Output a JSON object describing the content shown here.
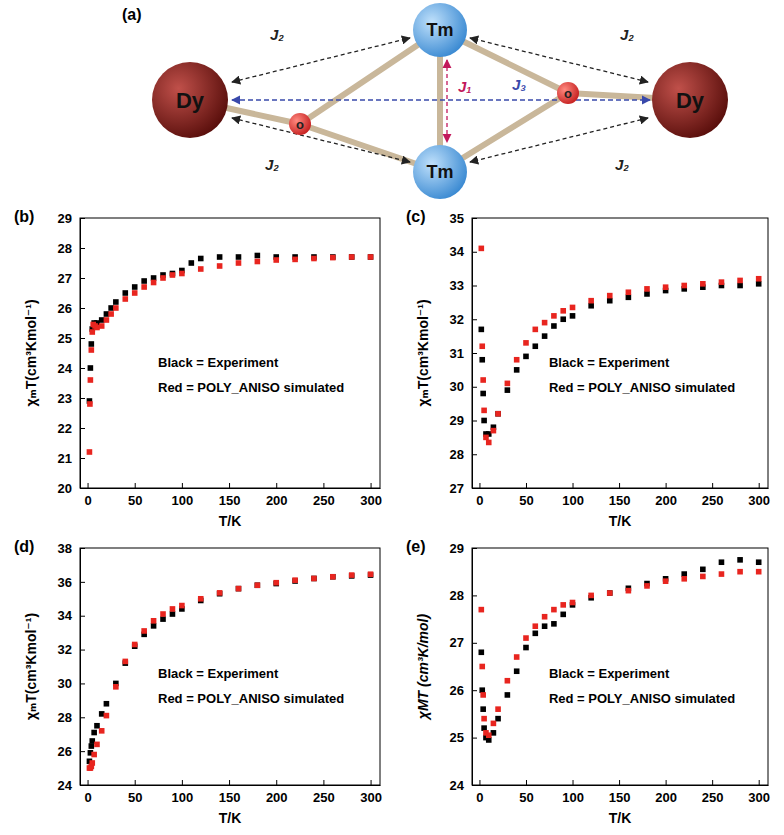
{
  "diagram": {
    "label": "(a)",
    "nodes": [
      {
        "label": "Dy"
      },
      {
        "label": "Dy"
      },
      {
        "label": "Tm"
      },
      {
        "label": "Tm"
      },
      {
        "label": "o"
      },
      {
        "label": "o"
      }
    ],
    "couplings": [
      {
        "label": "J₁"
      },
      {
        "label": "J₂"
      },
      {
        "label": "J₂"
      },
      {
        "label": "J₂"
      },
      {
        "label": "J₂"
      },
      {
        "label": "J₃"
      }
    ]
  },
  "chart_data": [
    {
      "type": "scatter",
      "title": "(b)",
      "xlabel": "T/K",
      "ylabel": "χₘT(cm³Kmol⁻¹)",
      "marker": "square",
      "xlim": [
        -8,
        310
      ],
      "ylim": [
        20,
        29
      ],
      "xticks": [
        0,
        50,
        100,
        150,
        200,
        250,
        300
      ],
      "yticks": [
        20,
        21,
        22,
        23,
        24,
        25,
        26,
        27,
        28,
        29
      ],
      "series": [
        {
          "name": "Black = Experiment",
          "color": "#000000",
          "x": [
            2,
            3,
            4,
            5,
            7,
            10,
            15,
            20,
            25,
            30,
            40,
            50,
            60,
            70,
            80,
            90,
            100,
            110,
            120,
            140,
            160,
            180,
            200,
            220,
            240,
            260,
            280,
            300
          ],
          "values": [
            22.9,
            24.0,
            24.8,
            25.3,
            25.5,
            25.5,
            25.6,
            25.8,
            26.0,
            26.2,
            26.5,
            26.7,
            26.9,
            27.0,
            27.1,
            27.15,
            27.25,
            27.5,
            27.65,
            27.7,
            27.7,
            27.75,
            27.7,
            27.7,
            27.7,
            27.7,
            27.7,
            27.7
          ]
        },
        {
          "name": "Red = POLY_ANISO simulated",
          "color": "#e8251f",
          "x": [
            2,
            2.5,
            3,
            4,
            5,
            6,
            8,
            10,
            15,
            20,
            25,
            30,
            40,
            50,
            60,
            70,
            80,
            90,
            100,
            120,
            140,
            160,
            180,
            200,
            220,
            240,
            260,
            280,
            300
          ],
          "values": [
            21.2,
            22.8,
            23.6,
            24.6,
            25.2,
            25.45,
            25.4,
            25.35,
            25.4,
            25.6,
            25.8,
            26.0,
            26.3,
            26.5,
            26.7,
            26.85,
            27.0,
            27.1,
            27.15,
            27.3,
            27.4,
            27.5,
            27.55,
            27.6,
            27.62,
            27.65,
            27.68,
            27.7,
            27.7
          ]
        }
      ]
    },
    {
      "type": "scatter",
      "title": "(c)",
      "xlabel": "T/K",
      "ylabel": "χₘT(cm³Kmol⁻¹)",
      "marker": "square",
      "xlim": [
        -8,
        310
      ],
      "ylim": [
        27,
        35
      ],
      "xticks": [
        0,
        50,
        100,
        150,
        200,
        250,
        300
      ],
      "yticks": [
        27,
        28,
        29,
        30,
        31,
        32,
        33,
        34,
        35
      ],
      "series": [
        {
          "name": "Black = Experiment",
          "color": "#000000",
          "x": [
            2,
            3,
            4,
            5,
            7,
            10,
            15,
            20,
            30,
            40,
            50,
            60,
            70,
            80,
            90,
            100,
            120,
            140,
            160,
            180,
            200,
            220,
            240,
            260,
            280,
            300
          ],
          "values": [
            31.7,
            30.8,
            29.8,
            29.0,
            28.6,
            28.6,
            28.8,
            29.2,
            29.9,
            30.5,
            30.9,
            31.2,
            31.5,
            31.8,
            32.0,
            32.1,
            32.4,
            32.55,
            32.65,
            32.75,
            32.85,
            32.9,
            32.95,
            33.0,
            33.0,
            33.05
          ]
        },
        {
          "name": "Red = POLY_ANISO simulated",
          "color": "#e8251f",
          "x": [
            2,
            3,
            4,
            5,
            7,
            10,
            15,
            20,
            30,
            40,
            50,
            60,
            70,
            80,
            90,
            100,
            120,
            140,
            160,
            180,
            200,
            220,
            240,
            260,
            280,
            300
          ],
          "values": [
            34.1,
            31.2,
            30.2,
            29.3,
            28.5,
            28.35,
            28.7,
            29.2,
            30.1,
            30.8,
            31.3,
            31.7,
            31.9,
            32.1,
            32.25,
            32.35,
            32.55,
            32.7,
            32.8,
            32.9,
            32.95,
            33.0,
            33.05,
            33.1,
            33.15,
            33.2
          ]
        }
      ]
    },
    {
      "type": "scatter",
      "title": "(d)",
      "xlabel": "T/K",
      "ylabel": "χₘT(cm³Kmol⁻¹)",
      "marker": "square",
      "xlim": [
        -8,
        310
      ],
      "ylim": [
        24,
        38
      ],
      "xticks": [
        0,
        50,
        100,
        150,
        200,
        250,
        300
      ],
      "yticks": [
        24,
        26,
        28,
        30,
        32,
        34,
        36,
        38
      ],
      "series": [
        {
          "name": "Black = Experiment",
          "color": "#000000",
          "x": [
            2,
            3,
            4,
            5,
            7,
            10,
            15,
            20,
            30,
            40,
            50,
            60,
            70,
            80,
            90,
            100,
            120,
            140,
            160,
            180,
            200,
            220,
            240,
            260,
            280,
            300
          ],
          "values": [
            25.4,
            25.9,
            26.3,
            26.6,
            27.1,
            27.5,
            28.2,
            28.8,
            30.0,
            31.2,
            32.2,
            32.9,
            33.4,
            33.8,
            34.1,
            34.4,
            34.9,
            35.3,
            35.6,
            35.8,
            35.9,
            36.05,
            36.2,
            36.3,
            36.35,
            36.4
          ]
        },
        {
          "name": "Red = POLY_ANISO simulated",
          "color": "#e8251f",
          "x": [
            2,
            3,
            4,
            5,
            7,
            10,
            15,
            20,
            30,
            40,
            50,
            60,
            70,
            80,
            90,
            100,
            120,
            140,
            160,
            180,
            200,
            220,
            240,
            260,
            280,
            300
          ],
          "values": [
            25.0,
            25.0,
            25.1,
            25.3,
            25.8,
            26.4,
            27.2,
            28.1,
            29.8,
            31.3,
            32.3,
            33.1,
            33.7,
            34.1,
            34.4,
            34.6,
            35.0,
            35.35,
            35.6,
            35.8,
            35.95,
            36.1,
            36.2,
            36.3,
            36.4,
            36.45
          ]
        }
      ]
    },
    {
      "type": "scatter",
      "title": "(e)",
      "xlabel": "T/K",
      "ylabel": "χMT (cm³K/mol)",
      "marker": "square",
      "xlim": [
        -8,
        310
      ],
      "ylim": [
        24,
        29
      ],
      "xticks": [
        0,
        50,
        100,
        150,
        200,
        250,
        300
      ],
      "yticks": [
        24,
        25,
        26,
        27,
        28,
        29
      ],
      "series": [
        {
          "name": "Black = Experiment",
          "color": "#000000",
          "x": [
            2,
            3,
            4,
            5,
            7,
            10,
            15,
            20,
            30,
            40,
            50,
            60,
            70,
            80,
            90,
            100,
            120,
            140,
            160,
            180,
            200,
            220,
            240,
            260,
            280,
            300
          ],
          "values": [
            26.8,
            26.0,
            25.6,
            25.2,
            25.0,
            24.95,
            25.1,
            25.4,
            25.9,
            26.4,
            26.9,
            27.2,
            27.35,
            27.4,
            27.6,
            27.8,
            27.95,
            28.05,
            28.15,
            28.25,
            28.35,
            28.45,
            28.55,
            28.7,
            28.75,
            28.7
          ]
        },
        {
          "name": "Red = POLY_ANISO simulated",
          "color": "#e8251f",
          "x": [
            2,
            3,
            4,
            5,
            7,
            10,
            15,
            20,
            30,
            40,
            50,
            60,
            70,
            80,
            90,
            100,
            120,
            140,
            160,
            180,
            200,
            220,
            240,
            260,
            280,
            300
          ],
          "values": [
            27.7,
            26.5,
            25.9,
            25.4,
            25.1,
            25.05,
            25.3,
            25.6,
            26.2,
            26.7,
            27.1,
            27.35,
            27.55,
            27.7,
            27.8,
            27.85,
            28.0,
            28.05,
            28.1,
            28.2,
            28.3,
            28.35,
            28.4,
            28.45,
            28.5,
            28.5
          ]
        }
      ]
    }
  ]
}
